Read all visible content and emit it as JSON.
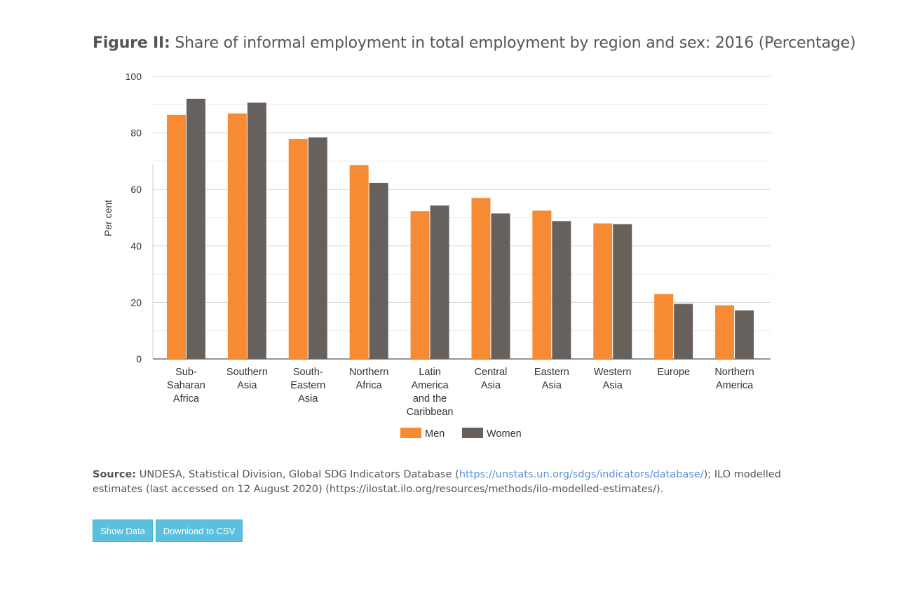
{
  "title": {
    "bold": "Figure II:",
    "text": "Share of informal employment in total employment by region and sex: 2016 (Percentage)"
  },
  "chart_data": {
    "type": "bar",
    "categories": [
      [
        "Sub-",
        "Saharan",
        "Africa"
      ],
      [
        "Southern",
        "Asia"
      ],
      [
        "South-",
        "Eastern",
        "Asia"
      ],
      [
        "Northern",
        "Africa"
      ],
      [
        "Latin",
        "America",
        "and the",
        "Caribbean"
      ],
      [
        "Central",
        "Asia"
      ],
      [
        "Eastern",
        "Asia"
      ],
      [
        "Western",
        "Asia"
      ],
      [
        "Europe"
      ],
      [
        "Northern",
        "America"
      ]
    ],
    "series": [
      {
        "name": "Men",
        "color": "#f68b34",
        "values": [
          86.4,
          86.9,
          77.9,
          68.6,
          52.3,
          57.0,
          52.5,
          48.0,
          23.0,
          19.0
        ]
      },
      {
        "name": "Women",
        "color": "#67615e",
        "values": [
          92.1,
          90.7,
          78.4,
          62.3,
          54.3,
          51.5,
          48.8,
          47.7,
          19.5,
          17.2
        ]
      }
    ],
    "ylabel": "Per cent",
    "xlabel": "",
    "ylim": [
      0,
      100
    ],
    "yticks": [
      0,
      20,
      40,
      60,
      80,
      100
    ],
    "grid": true,
    "legend": "bottom-center"
  },
  "source": {
    "label": "Source:",
    "text_before": "UNDESA, Statistical Division, Global SDG Indicators Database (",
    "link": "https://unstats.un.org/sdgs/indicators/database/",
    "text_after": "); ILO modelled estimates (last accessed on 12 August 2020) (https://ilostat.ilo.org/resources/methods/ilo-modelled-estimates/)."
  },
  "buttons": {
    "show_data": "Show Data",
    "download_csv": "Download to CSV"
  }
}
